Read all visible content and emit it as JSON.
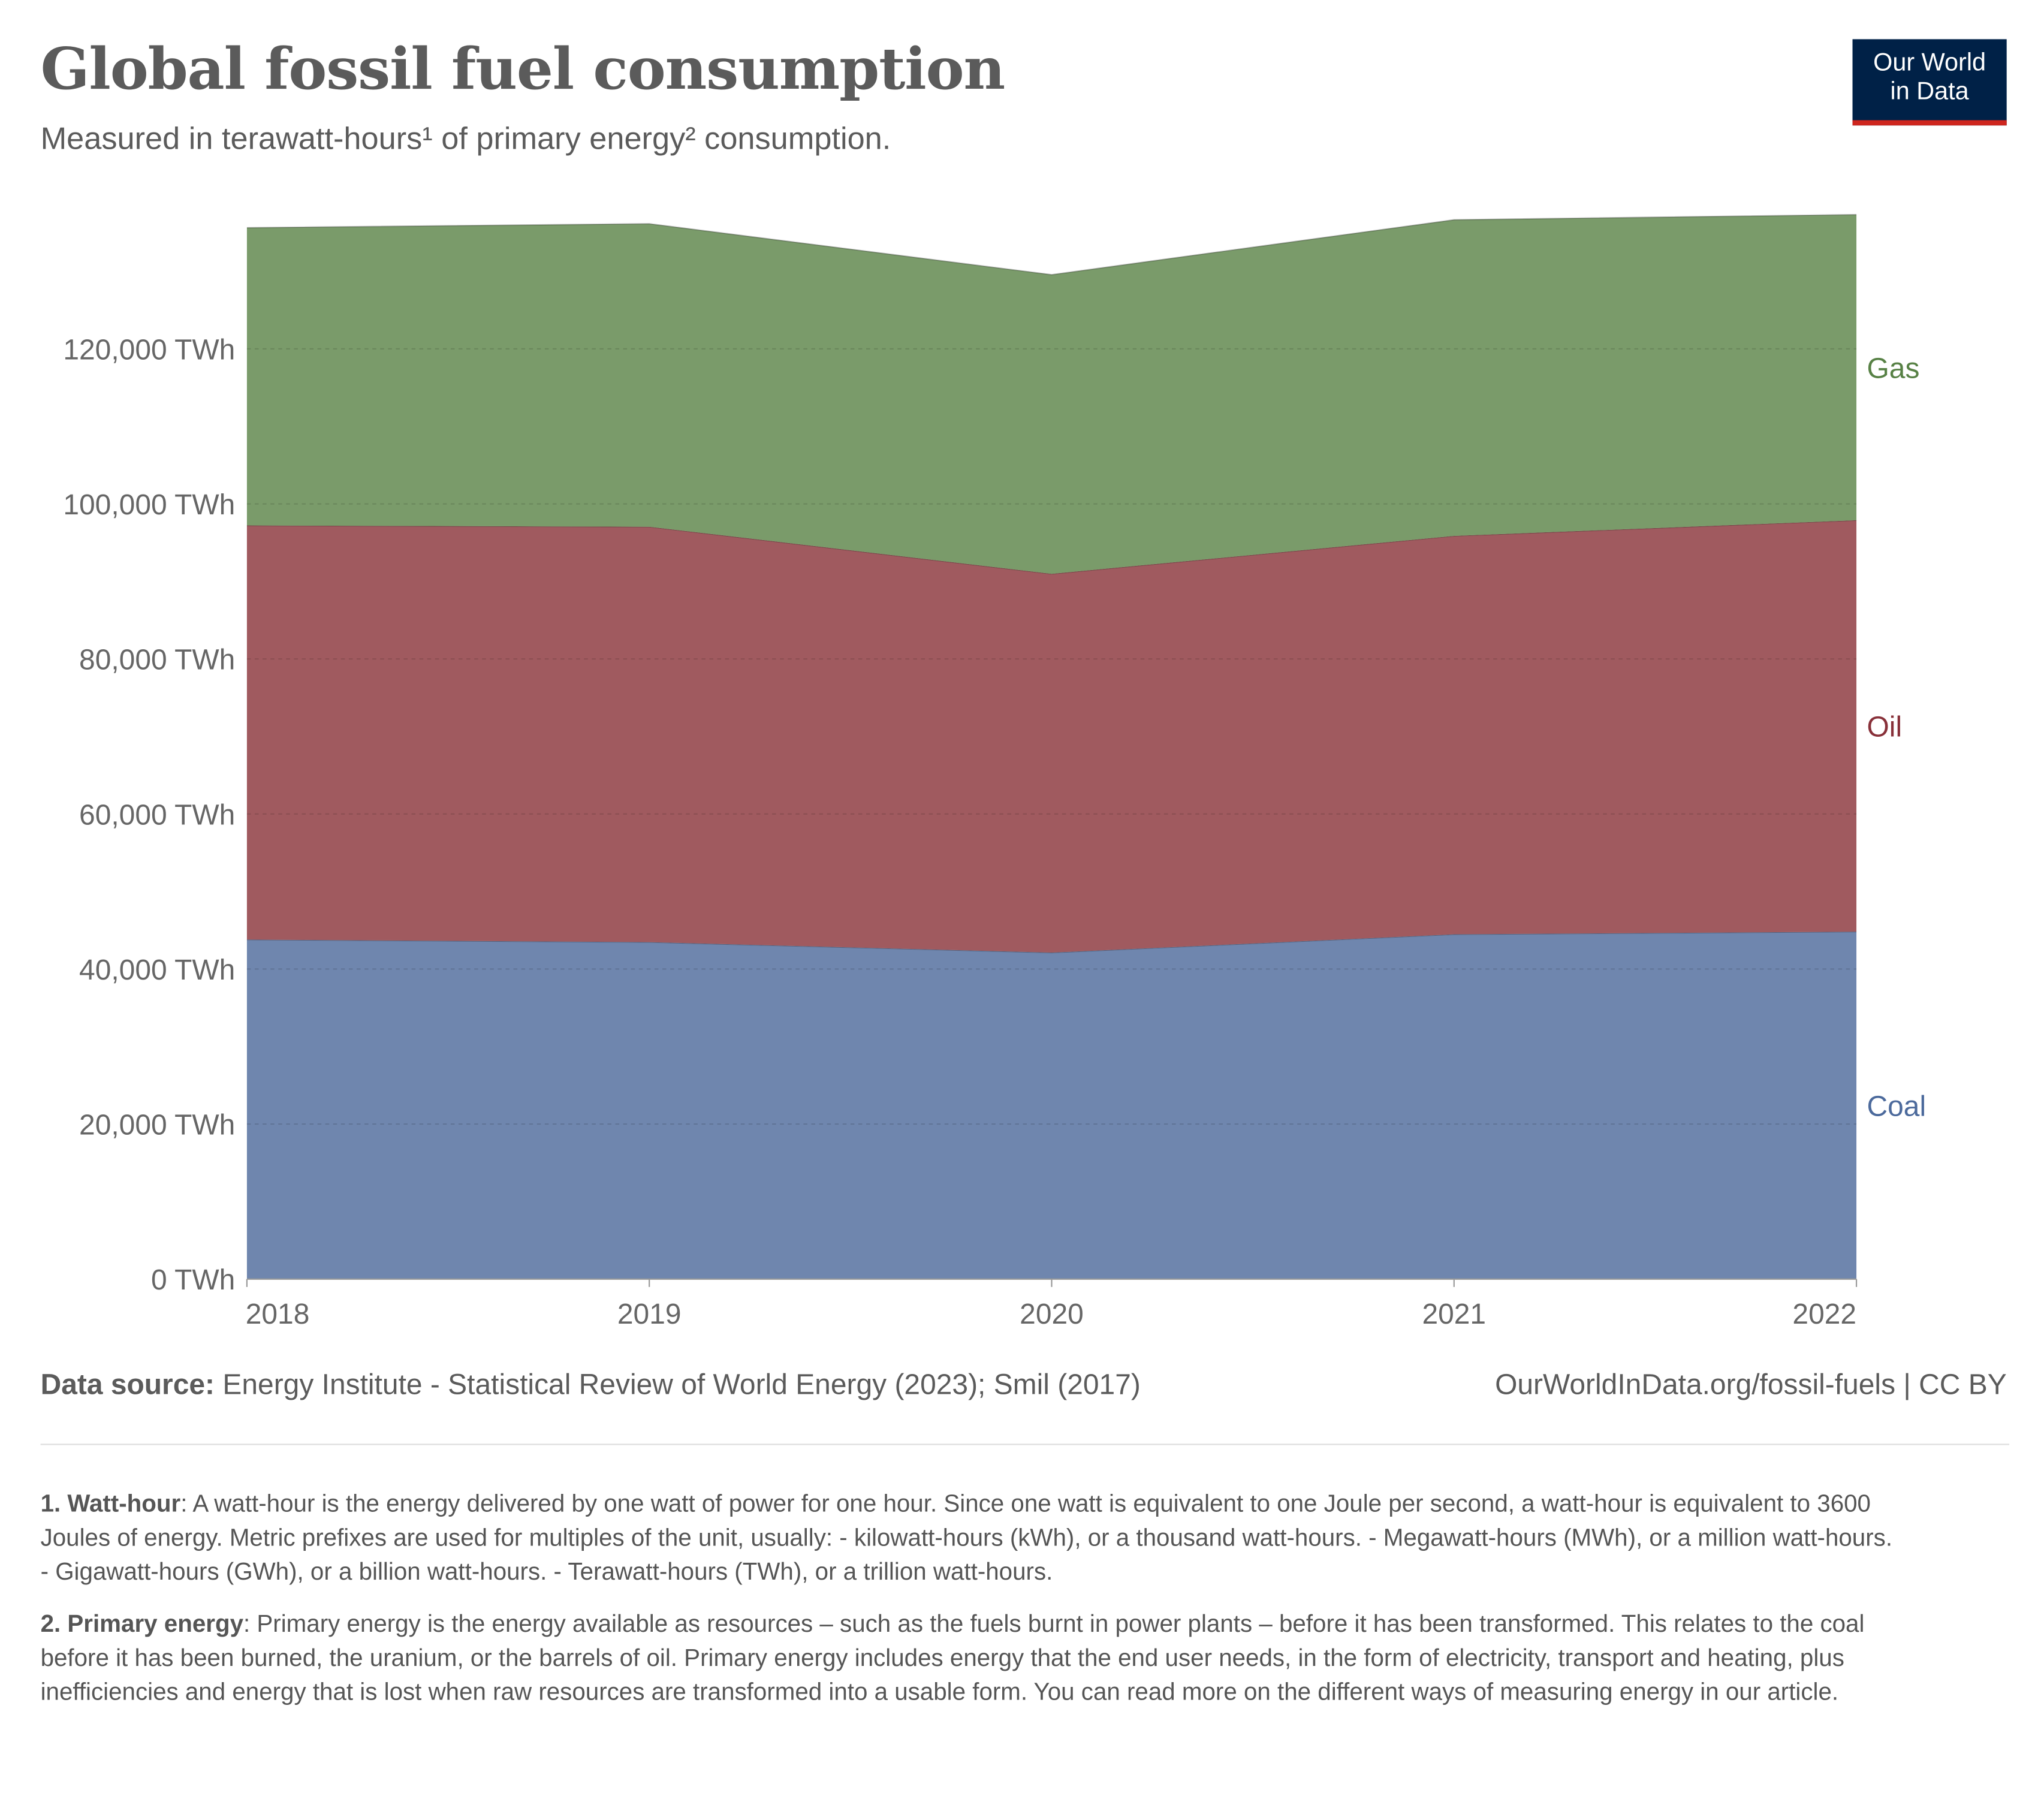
{
  "title": "Global fossil fuel consumption",
  "subtitle": "Measured in terawatt-hours¹ of primary energy² consumption.",
  "logo": {
    "line1": "Our World",
    "line2": "in Data"
  },
  "colors": {
    "coal": "#6f86ae",
    "oil": "#a05a5f",
    "gas": "#7a9b6a",
    "coal_label": "#4c6a9c",
    "oil_label": "#883039",
    "gas_label": "#578145"
  },
  "chart_data": {
    "type": "area",
    "stacked": true,
    "title": "Global fossil fuel consumption",
    "x": [
      2018,
      2019,
      2020,
      2021,
      2022
    ],
    "x_tick_labels": [
      "2018",
      "2019",
      "2020",
      "2021",
      "2022"
    ],
    "y_ticks": [
      0,
      20000,
      40000,
      60000,
      80000,
      100000,
      120000
    ],
    "y_tick_labels": [
      "0 TWh",
      "20,000 TWh",
      "40,000 TWh",
      "60,000 TWh",
      "80,000 TWh",
      "100,000 TWh",
      "120,000 TWh"
    ],
    "ylim": [
      0,
      140000
    ],
    "grid": "horizontal dashed",
    "legend": "right (inline labels)",
    "series": [
      {
        "name": "Coal",
        "values": [
          43800,
          43470,
          42120,
          44480,
          44820
        ]
      },
      {
        "name": "Oil",
        "values": [
          53420,
          53580,
          48860,
          51390,
          53070
        ]
      },
      {
        "name": "Gas",
        "values": [
          38410,
          39090,
          38590,
          40780,
          39430
        ]
      }
    ]
  },
  "footer": {
    "source_label": "Data source:",
    "source_text": "Energy Institute - Statistical Review of World Energy (2023); Smil (2017)",
    "url": "OurWorldInData.org/fossil-fuels | CC BY"
  },
  "notes": [
    {
      "term": "1. Watt-hour",
      "text": ": A watt-hour is the energy delivered by one watt of power for one hour. Since one watt is equivalent to one Joule per second, a watt-hour is equivalent to 3600 Joules of energy. Metric prefixes are used for multiples of the unit, usually: - kilowatt-hours (kWh), or a thousand watt-hours. - Megawatt-hours (MWh), or a million watt-hours. - Gigawatt-hours (GWh), or a billion watt-hours. - Terawatt-hours (TWh), or a trillion watt-hours."
    },
    {
      "term": "2. Primary energy",
      "text": ": Primary energy is the energy available as resources – such as the fuels burnt in power plants – before it has been transformed. This relates to the coal before it has been burned, the uranium, or the barrels of oil. Primary energy includes energy that the end user needs, in the form of electricity, transport and heating, plus inefficiencies and energy that is lost when raw resources are transformed into a usable form. You can read more on the different ways of measuring energy in our article."
    }
  ]
}
